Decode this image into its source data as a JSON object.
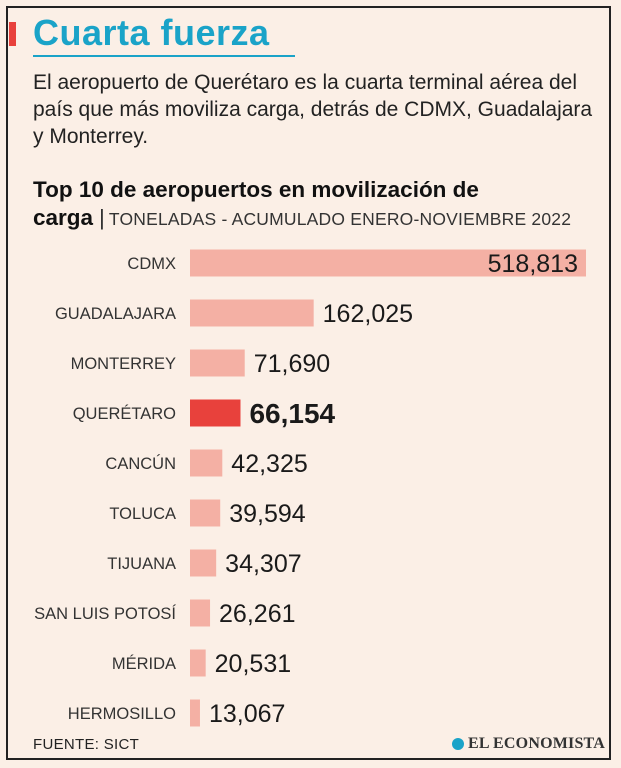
{
  "header": {
    "title": "Cuarta fuerza",
    "intro": "El aeropuerto de Querétaro es la cuarta terminal aérea del país que más moviliza carga, detrás de CDMX, Guadalajara y Monterrey."
  },
  "chart_data": {
    "type": "bar",
    "orientation": "horizontal",
    "title": "Top 10 de aeropuertos en movilización de carga",
    "subtitle": "TONELADAS - ACUMULADO ENERO-NOVIEMBRE 2022",
    "categories": [
      "CDMX",
      "GUADALAJARA",
      "MONTERREY",
      "QUERÉTARO",
      "CANCÚN",
      "TOLUCA",
      "TIJUANA",
      "SAN LUIS POTOSÍ",
      "MÉRIDA",
      "HERMOSILLO"
    ],
    "values": [
      518813,
      162025,
      71690,
      66154,
      42325,
      39594,
      34307,
      26261,
      20531,
      13067
    ],
    "value_labels": [
      "518,813",
      "162,025",
      "71,690",
      "66,154",
      "42,325",
      "39,594",
      "34,307",
      "26,261",
      "20,531",
      "13,067"
    ],
    "highlight": "QUERÉTARO",
    "colors": {
      "bar": "#f4b0a4",
      "highlight": "#e8413c"
    },
    "grid": false,
    "legend": "none"
  },
  "footer": {
    "source": "FUENTE: SICT",
    "brand": "EL ECONOMISTA"
  }
}
